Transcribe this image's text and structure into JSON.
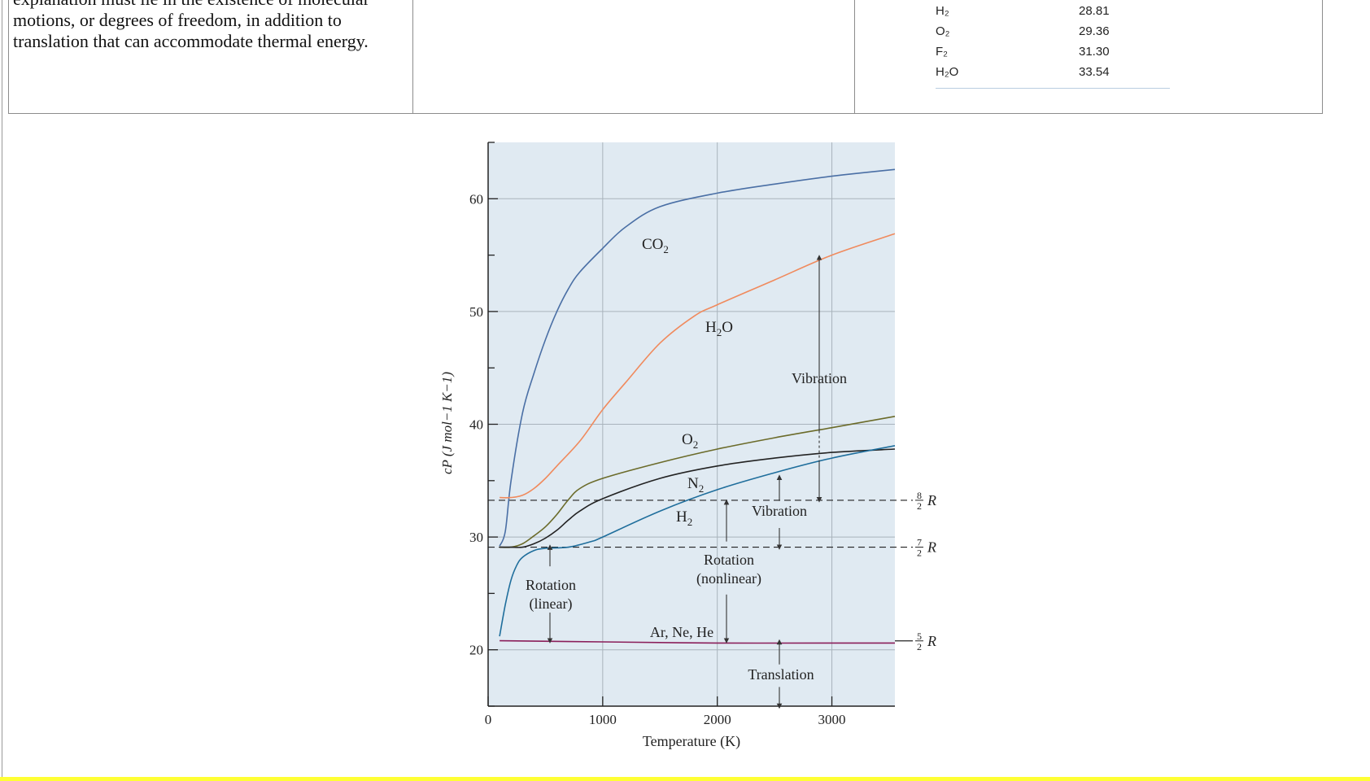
{
  "intro": {
    "lines": [
      "explanation must lie in the existence of molecular",
      "motions, or degrees of freedom, in addition to",
      "translation that can accommodate thermal energy."
    ]
  },
  "cp_table": {
    "rows": [
      {
        "gas": "H₂",
        "value": "28.81"
      },
      {
        "gas": "O₂",
        "value": "29.36"
      },
      {
        "gas": "F₂",
        "value": "31.30"
      },
      {
        "gas": "H₂O",
        "value": "33.54"
      }
    ]
  },
  "chart_data": {
    "type": "line",
    "title": "",
    "xlabel": "Temperature (K)",
    "ylabel": "cP (J mol−1 K−1)",
    "xlim": [
      0,
      3550
    ],
    "ylim": [
      15,
      65
    ],
    "x_ticks": [
      "0",
      "1000",
      "2000",
      "3000"
    ],
    "y_ticks": [
      "20",
      "30",
      "40",
      "50",
      "60"
    ],
    "grid": true,
    "series": [
      {
        "name": "CO₂",
        "color": "#4a6fa5",
        "points": [
          [
            100,
            29.2
          ],
          [
            150,
            30.5
          ],
          [
            200,
            35
          ],
          [
            300,
            41
          ],
          [
            400,
            44.5
          ],
          [
            500,
            47.5
          ],
          [
            600,
            50
          ],
          [
            700,
            52
          ],
          [
            800,
            53.5
          ],
          [
            1000,
            55.6
          ],
          [
            1200,
            57.5
          ],
          [
            1500,
            59.3
          ],
          [
            2000,
            60.5
          ],
          [
            2500,
            61.3
          ],
          [
            3000,
            62
          ],
          [
            3550,
            62.6
          ]
        ]
      },
      {
        "name": "H₂O",
        "color": "#f08a5d",
        "points": [
          [
            100,
            33.5
          ],
          [
            200,
            33.5
          ],
          [
            300,
            33.7
          ],
          [
            400,
            34.3
          ],
          [
            500,
            35.2
          ],
          [
            600,
            36.3
          ],
          [
            800,
            38.5
          ],
          [
            1000,
            41.3
          ],
          [
            1200,
            43.7
          ],
          [
            1500,
            47.2
          ],
          [
            1800,
            49.6
          ],
          [
            2000,
            50.6
          ],
          [
            2500,
            52.8
          ],
          [
            3000,
            55
          ],
          [
            3550,
            56.9
          ]
        ]
      },
      {
        "name": "O₂",
        "color": "#6b6b2a",
        "points": [
          [
            100,
            29.1
          ],
          [
            200,
            29.1
          ],
          [
            300,
            29.4
          ],
          [
            400,
            30.1
          ],
          [
            500,
            30.9
          ],
          [
            600,
            32
          ],
          [
            700,
            33.3
          ],
          [
            800,
            34.3
          ],
          [
            1000,
            35.2
          ],
          [
            1500,
            36.6
          ],
          [
            2000,
            37.8
          ],
          [
            2500,
            38.8
          ],
          [
            3000,
            39.7
          ],
          [
            3550,
            40.7
          ]
        ]
      },
      {
        "name": "N₂",
        "color": "#222222",
        "points": [
          [
            100,
            29.1
          ],
          [
            200,
            29.1
          ],
          [
            300,
            29.1
          ],
          [
            400,
            29.4
          ],
          [
            500,
            29.9
          ],
          [
            600,
            30.6
          ],
          [
            700,
            31.5
          ],
          [
            800,
            32.3
          ],
          [
            1000,
            33.4
          ],
          [
            1500,
            35.2
          ],
          [
            2000,
            36.3
          ],
          [
            2500,
            37
          ],
          [
            3000,
            37.5
          ],
          [
            3550,
            37.8
          ]
        ]
      },
      {
        "name": "H₂",
        "color": "#1f6e9c",
        "points": [
          [
            100,
            21.2
          ],
          [
            150,
            24
          ],
          [
            200,
            26.2
          ],
          [
            250,
            27.5
          ],
          [
            300,
            28.2
          ],
          [
            400,
            28.8
          ],
          [
            500,
            29
          ],
          [
            700,
            29.1
          ],
          [
            900,
            29.6
          ],
          [
            1000,
            30
          ],
          [
            1500,
            32.3
          ],
          [
            2000,
            34.2
          ],
          [
            2500,
            35.7
          ],
          [
            3000,
            37
          ],
          [
            3550,
            38.1
          ]
        ]
      },
      {
        "name": "Ar, Ne, He",
        "color": "#8a1e5a",
        "points": [
          [
            100,
            20.8
          ],
          [
            1000,
            20.7
          ],
          [
            2000,
            20.6
          ],
          [
            3000,
            20.6
          ],
          [
            3550,
            20.6
          ]
        ]
      }
    ],
    "reference_lines": [
      {
        "label": "8/2 R",
        "numerator": "8",
        "denominator": "2",
        "symbol": "R",
        "value": 33.26
      },
      {
        "label": "7/2 R",
        "numerator": "7",
        "denominator": "2",
        "symbol": "R",
        "value": 29.1
      },
      {
        "label": "5/2 R",
        "numerator": "5",
        "denominator": "2",
        "symbol": "R",
        "value": 20.79
      }
    ],
    "annotations": {
      "rotation_linear": [
        "Rotation",
        "(linear)"
      ],
      "rotation_nonlinear": [
        "Rotation",
        "(nonlinear)"
      ],
      "vibration_upper": "Vibration",
      "vibration_lower": "Vibration",
      "translation": "Translation",
      "ar_ne_he": "Ar, Ne, He",
      "label_co2": "CO",
      "label_h2o_h": "H",
      "label_h2o_o": "O",
      "label_o2": "O",
      "label_n2": "N",
      "label_h2": "H",
      "subscript_2": "2"
    }
  }
}
